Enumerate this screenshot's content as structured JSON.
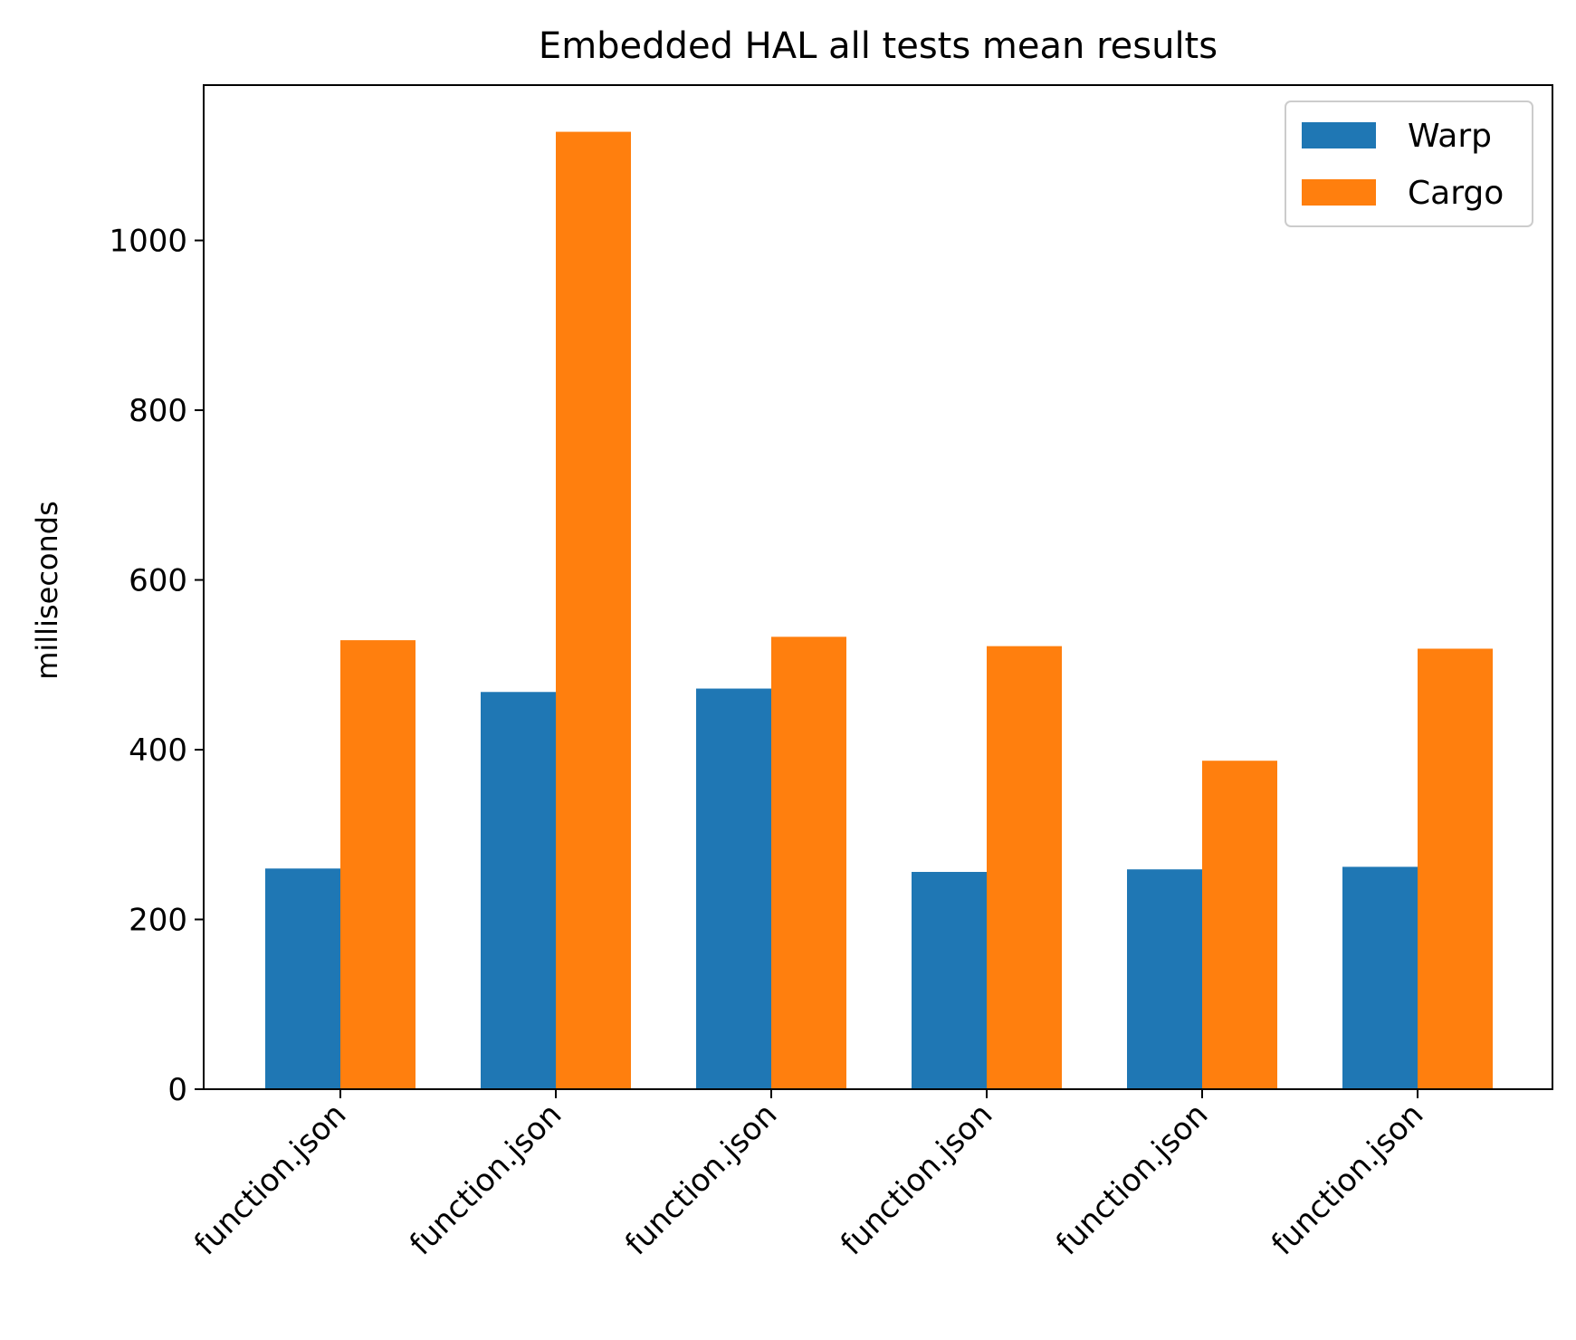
{
  "chart_data": {
    "type": "bar",
    "title": "Embedded HAL all tests mean results",
    "xlabel": "",
    "ylabel": "milliseconds",
    "categories": [
      "function.json",
      "function.json",
      "function.json",
      "function.json",
      "function.json",
      "function.json"
    ],
    "series": [
      {
        "name": "Warp",
        "values": [
          260,
          468,
          472,
          256,
          259,
          262
        ],
        "color": "#1f77b4"
      },
      {
        "name": "Cargo",
        "values": [
          529,
          1128,
          533,
          522,
          387,
          519
        ],
        "color": "#ff7f0e"
      }
    ],
    "ylim": [
      0,
      1183
    ],
    "yticks": [
      0,
      200,
      400,
      600,
      800,
      1000
    ],
    "grid": false,
    "legend": "top-right"
  }
}
